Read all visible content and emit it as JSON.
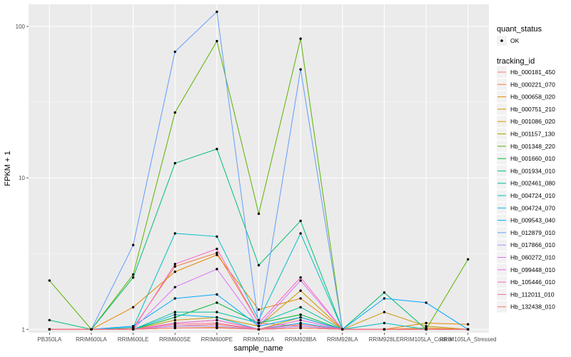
{
  "chart_data": {
    "type": "line",
    "ylabel": "FPKM + 1",
    "xlabel": "sample_name",
    "y_scale": "log10",
    "ylim": [
      0.95,
      140
    ],
    "y_ticks": [
      {
        "value": 1,
        "label": "1"
      },
      {
        "value": 10,
        "label": "10"
      },
      {
        "value": 100,
        "label": "100"
      }
    ],
    "categories": [
      "PB350LA",
      "RRIM600LA",
      "RRIM600LE",
      "RRIM600SE",
      "RRIM600PE",
      "RRIM901LA",
      "RRIM928BA",
      "RRIM928LA",
      "RRIM928LE",
      "RRIM105LA_Control",
      "RRIM105LA_Stressed"
    ],
    "legend_shape": {
      "title": "quant_status",
      "entries": [
        "OK"
      ]
    },
    "legend_color_title": "tracking_id",
    "series": [
      {
        "name": "Hb_000181_450",
        "color": "#F8766D",
        "values": [
          1,
          1,
          1,
          1.05,
          1.08,
          1,
          1.02,
          1,
          1,
          1,
          1
        ]
      },
      {
        "name": "Hb_000221_070",
        "color": "#F07D3D",
        "values": [
          1,
          1,
          1.02,
          2.6,
          3.2,
          1.1,
          1.05,
          1,
          1,
          1,
          1
        ]
      },
      {
        "name": "Hb_000658_020",
        "color": "#E58700",
        "values": [
          1,
          1,
          1.4,
          2.4,
          3.1,
          1.35,
          1.6,
          1,
          1,
          1.1,
          1.08
        ]
      },
      {
        "name": "Hb_000751_210",
        "color": "#D89000",
        "values": [
          1,
          1,
          1,
          1.02,
          1.03,
          1,
          1.02,
          1,
          1,
          1.02,
          1
        ]
      },
      {
        "name": "Hb_001086_020",
        "color": "#C99800",
        "values": [
          1,
          1,
          1,
          1.15,
          1.2,
          1.05,
          1.8,
          1,
          1.3,
          1.05,
          1
        ]
      },
      {
        "name": "Hb_001157_130",
        "color": "#A3A500",
        "values": [
          1,
          1,
          1,
          1.1,
          1.15,
          1,
          1.2,
          1,
          1,
          1,
          1
        ]
      },
      {
        "name": "Hb_001348_220",
        "color": "#5BB300",
        "values": [
          2.1,
          1,
          2.3,
          27,
          80,
          5.8,
          83,
          1,
          1,
          1,
          2.9
        ]
      },
      {
        "name": "Hb_001660_010",
        "color": "#00BA38",
        "values": [
          1,
          1,
          1,
          1.2,
          1.5,
          1.1,
          1.25,
          1,
          1,
          1,
          1
        ]
      },
      {
        "name": "Hb_001934_010",
        "color": "#00BF74",
        "values": [
          1.15,
          1,
          2.2,
          12.5,
          15.5,
          2.65,
          5.2,
          1,
          1.75,
          1,
          1
        ]
      },
      {
        "name": "Hb_002461_080",
        "color": "#00C19A",
        "values": [
          1,
          1,
          1,
          1.3,
          1.3,
          1.1,
          1.4,
          1,
          1,
          1,
          1
        ]
      },
      {
        "name": "Hb_004724_010",
        "color": "#00BFC4",
        "values": [
          1,
          1,
          1.03,
          4.3,
          4.1,
          1.15,
          4.3,
          1,
          1.1,
          1,
          1
        ]
      },
      {
        "name": "Hb_004724_070",
        "color": "#00B8E7",
        "values": [
          1,
          1,
          1,
          1.25,
          1.2,
          1,
          1.1,
          1,
          1,
          1,
          1
        ]
      },
      {
        "name": "Hb_009543_040",
        "color": "#00A9FF",
        "values": [
          1,
          1,
          1.05,
          1.6,
          1.7,
          1.05,
          1.2,
          1,
          1.6,
          1.5,
          1
        ]
      },
      {
        "name": "Hb_012879_010",
        "color": "#619CFF",
        "values": [
          1,
          1,
          3.6,
          68,
          125,
          1.05,
          52,
          1,
          1,
          1,
          1
        ]
      },
      {
        "name": "Hb_017866_010",
        "color": "#AE87FF",
        "values": [
          1,
          1,
          1,
          1.05,
          1.05,
          1,
          1.05,
          1,
          1,
          1,
          1
        ]
      },
      {
        "name": "Hb_060272_010",
        "color": "#DB72FB",
        "values": [
          1,
          1,
          1,
          1.9,
          2.5,
          1.05,
          2.1,
          1,
          1,
          1,
          1
        ]
      },
      {
        "name": "Hb_099448_010",
        "color": "#F564E3",
        "values": [
          1,
          1,
          1,
          1.1,
          1.15,
          1,
          1.15,
          1,
          1,
          1,
          1
        ]
      },
      {
        "name": "Hb_105446_010",
        "color": "#FF61C3",
        "values": [
          1,
          1,
          1,
          2.7,
          3.4,
          1.1,
          2.2,
          1,
          1,
          1,
          1
        ]
      },
      {
        "name": "Hb_112011_010",
        "color": "#FF6C91",
        "values": [
          1,
          1,
          1,
          1.08,
          1.1,
          1,
          1.08,
          1,
          1,
          1,
          1
        ]
      },
      {
        "name": "Hb_132438_010",
        "color": "#F8766D",
        "values": [
          1,
          1,
          1,
          1.02,
          1.02,
          1,
          1.02,
          1,
          1,
          1,
          1
        ]
      }
    ]
  }
}
